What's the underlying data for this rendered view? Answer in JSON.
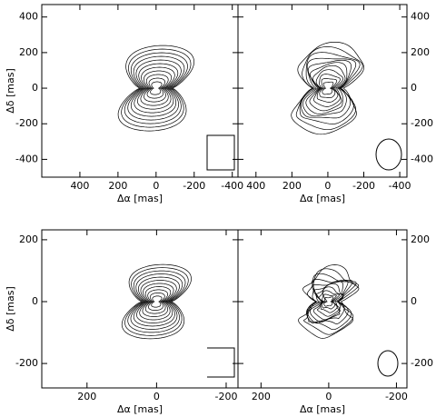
{
  "chart_data": [
    {
      "type": "contour",
      "xlabel": "Δα [mas]",
      "ylabel": "Δδ [mas]",
      "xlim": [
        600,
        -430
      ],
      "ylim": [
        -500,
        470
      ],
      "xticks": [
        400,
        200,
        0,
        -200,
        -400
      ],
      "yticks": [
        400,
        200,
        0,
        -200,
        -400
      ]
    },
    {
      "type": "contour",
      "xlabel": "Δα [mas]",
      "xlim": [
        500,
        -440
      ],
      "ylim": [
        -500,
        470
      ],
      "xticks": [
        400,
        200,
        0,
        -200,
        -400
      ],
      "yticks": [
        400,
        200,
        0,
        -200,
        -400
      ]
    },
    {
      "type": "contour",
      "xlabel": "Δα [mas]",
      "ylabel": "Δδ [mas]",
      "xlim": [
        330,
        -234
      ],
      "ylim": [
        -279,
        232
      ],
      "xticks": [
        200,
        0,
        -200
      ],
      "yticks": [
        200,
        0,
        -200
      ]
    },
    {
      "type": "contour",
      "xlabel": "Δα [mas]",
      "xlim": [
        268,
        -231
      ],
      "ylim": [
        -279,
        232
      ],
      "xticks": [
        200,
        0,
        -200
      ],
      "yticks": [
        200,
        0,
        -200
      ]
    }
  ]
}
